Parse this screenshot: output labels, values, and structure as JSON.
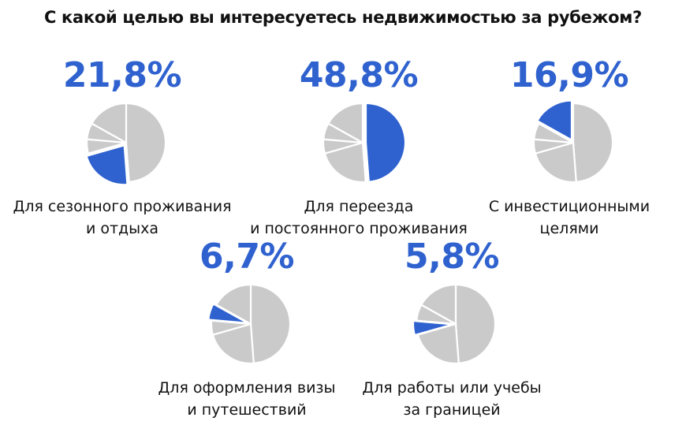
{
  "title": "С какой целью вы интересуетесь недвижимостью за рубежом?",
  "colors": {
    "highlight": "#2f62cf",
    "other": "#cacaca",
    "separator": "#ffffff"
  },
  "chart_data": {
    "type": "pie",
    "title": "С какой целью вы интересуетесь недвижимостью за рубежом?",
    "unit": "%",
    "categories": [
      "Для сезонного проживания и отдыха",
      "Для переезда и постоянного проживания",
      "С инвестиционными целями",
      "Для оформления визы и путешествий",
      "Для работы или учебы за границей"
    ],
    "values": [
      21.8,
      48.8,
      16.9,
      6.7,
      5.8
    ],
    "items": [
      {
        "value": 21.8,
        "value_label": "21,8%",
        "label_lines": [
          "Для сезонного проживания",
          "и отдыха"
        ]
      },
      {
        "value": 48.8,
        "value_label": "48,8%",
        "label_lines": [
          "Для переезда",
          "и постоянного проживания"
        ]
      },
      {
        "value": 16.9,
        "value_label": "16,9%",
        "label_lines": [
          "С инвестиционными",
          "целями"
        ]
      },
      {
        "value": 6.7,
        "value_label": "6,7%",
        "label_lines": [
          "Для оформления визы",
          "и путешествий"
        ]
      },
      {
        "value": 5.8,
        "value_label": "5,8%",
        "label_lines": [
          "Для работы или учебы",
          "за границей"
        ]
      }
    ]
  }
}
